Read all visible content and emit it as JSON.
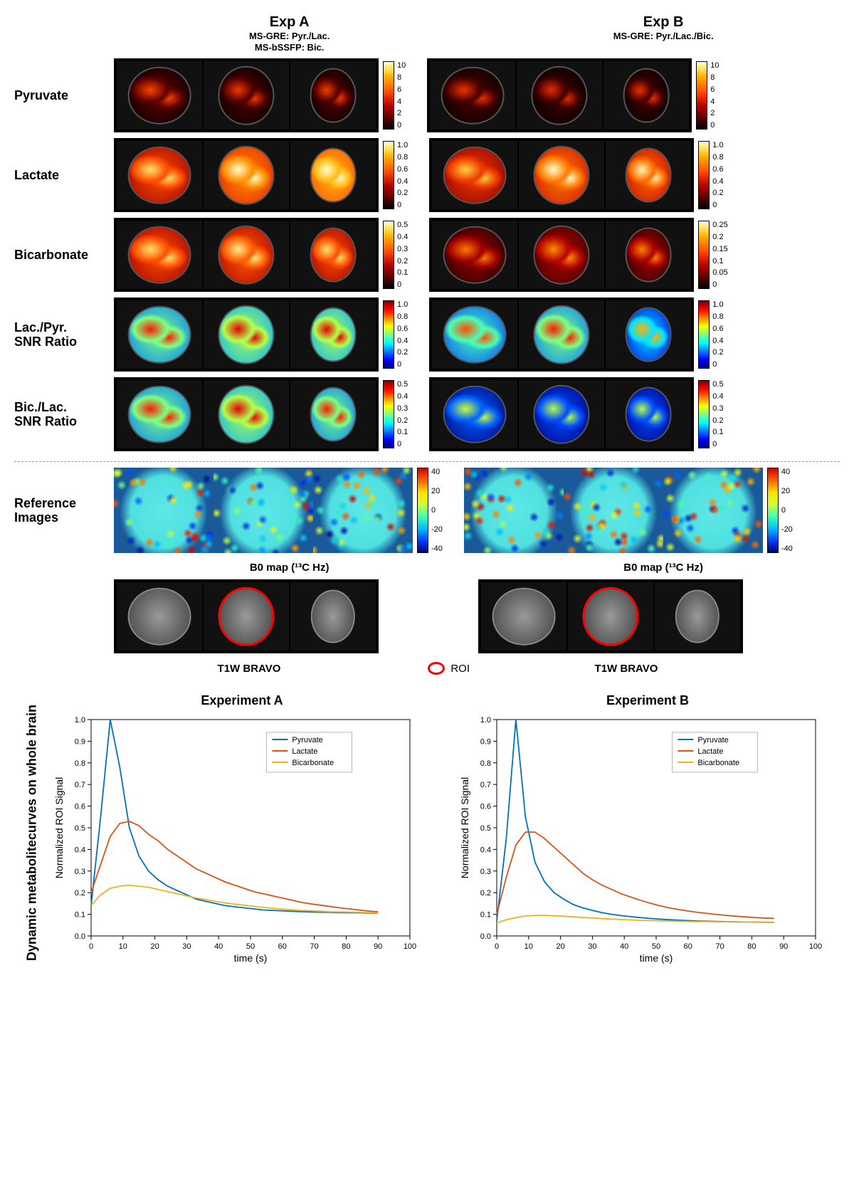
{
  "headers": {
    "expA": {
      "title": "Exp A",
      "sub1": "MS-GRE: Pyr./Lac.",
      "sub2": "MS-bSSFP: Bic."
    },
    "expB": {
      "title": "Exp B",
      "sub1": "MS-GRE: Pyr./Lac./Bic."
    }
  },
  "rows": {
    "pyruvate": {
      "label": "Pyruvate"
    },
    "lactate": {
      "label": "Lactate"
    },
    "bicarbonate": {
      "label": "Bicarbonate"
    },
    "lacpyr": {
      "label": "Lac./Pyr.\nSNR Ratio"
    },
    "biclac": {
      "label": "Bic./Lac.\nSNR Ratio"
    },
    "reference": {
      "label": "Reference\nImages"
    }
  },
  "colormaps": {
    "hot": [
      "#000000",
      "#3a0000",
      "#7a0000",
      "#b00000",
      "#e02000",
      "#ff5000",
      "#ff8000",
      "#ffb000",
      "#ffe060",
      "#ffffc8"
    ],
    "jet": [
      "#00007f",
      "#0000ff",
      "#007fff",
      "#00ffff",
      "#7fff7f",
      "#ffff00",
      "#ff7f00",
      "#ff0000",
      "#7f0000"
    ],
    "jet_ref": [
      "#000080",
      "#0040ff",
      "#00c0ff",
      "#40ffb0",
      "#d0ff30",
      "#ffe000",
      "#ff6000",
      "#d00000"
    ]
  },
  "colorbars": {
    "pyruvateA": {
      "cmap": "hot",
      "ticks": [
        "10",
        "8",
        "6",
        "4",
        "2",
        "0"
      ]
    },
    "pyruvateB": {
      "cmap": "hot",
      "ticks": [
        "10",
        "8",
        "6",
        "4",
        "2",
        "0"
      ]
    },
    "lactateA": {
      "cmap": "hot",
      "ticks": [
        "1.0",
        "0.8",
        "0.6",
        "0.4",
        "0.2",
        "0"
      ]
    },
    "lactateB": {
      "cmap": "hot",
      "ticks": [
        "1.0",
        "0.8",
        "0.6",
        "0.4",
        "0.2",
        "0"
      ]
    },
    "bicarbonateA": {
      "cmap": "hot",
      "ticks": [
        "0.5",
        "0.4",
        "0.3",
        "0.2",
        "0.1",
        "0"
      ]
    },
    "bicarbonateB": {
      "cmap": "hot",
      "ticks": [
        "0.25",
        "0.2",
        "0.15",
        "0.1",
        "0.05",
        "0"
      ]
    },
    "lacpyrA": {
      "cmap": "jet",
      "ticks": [
        "1.0",
        "0.8",
        "0.6",
        "0.4",
        "0.2",
        "0"
      ]
    },
    "lacpyrB": {
      "cmap": "jet",
      "ticks": [
        "1.0",
        "0.8",
        "0.6",
        "0.4",
        "0.2",
        "0"
      ]
    },
    "biclacA": {
      "cmap": "jet",
      "ticks": [
        "0.5",
        "0.4",
        "0.3",
        "0.2",
        "0.1",
        "0"
      ]
    },
    "biclacB": {
      "cmap": "jet",
      "ticks": [
        "0.5",
        "0.4",
        "0.3",
        "0.2",
        "0.1",
        "0"
      ]
    },
    "refA": {
      "cmap": "jet_ref",
      "ticks": [
        "40",
        "20",
        "0",
        "-20",
        "-40"
      ]
    },
    "refB": {
      "cmap": "jet_ref",
      "ticks": [
        "40",
        "20",
        "0",
        "-20",
        "-40"
      ]
    }
  },
  "captions": {
    "b0map": "B0 map (¹³C Hz)",
    "t1w": "T1W BRAVO",
    "roi": "ROI"
  },
  "slice_fill_levels": {
    "pyruvateA": [
      0.18,
      0.15,
      0.16
    ],
    "pyruvateB": [
      0.14,
      0.12,
      0.13
    ],
    "lactateA": [
      0.55,
      0.7,
      0.8
    ],
    "lactateB": [
      0.5,
      0.65,
      0.62
    ],
    "bicarbonateA": [
      0.55,
      0.58,
      0.55
    ],
    "bicarbonateB": [
      0.3,
      0.35,
      0.32
    ],
    "lacpyrA": [
      0.5,
      0.55,
      0.55
    ],
    "lacpyrB": [
      0.45,
      0.5,
      0.35
    ],
    "biclacA": [
      0.5,
      0.55,
      0.5
    ],
    "biclacB": [
      0.22,
      0.2,
      0.2
    ]
  },
  "charts": {
    "sectionLabel": "Dynamic metabolite\ncurves on whole brain",
    "xlabel": "time (s)",
    "ylabel": "Normalized ROI Signal",
    "xlim": [
      0,
      100
    ],
    "xtick_step": 10,
    "ylim": [
      0,
      1
    ],
    "ytick_step": 0.1,
    "legend": [
      "Pyruvate",
      "Lactate",
      "Bicarbonate"
    ],
    "colors": {
      "Pyruvate": "#0072bd",
      "Lactate": "#d95319",
      "Bicarbonate": "#edb120"
    },
    "line_width": 1.8,
    "A": {
      "title": "Experiment A",
      "x": [
        0,
        3,
        6,
        9,
        12,
        15,
        18,
        21,
        24,
        27,
        30,
        33,
        36,
        39,
        42,
        45,
        48,
        51,
        54,
        57,
        60,
        63,
        66,
        69,
        72,
        75,
        78,
        81,
        84,
        87,
        90
      ],
      "Pyruvate": [
        0.14,
        0.55,
        1.0,
        0.78,
        0.5,
        0.37,
        0.3,
        0.26,
        0.23,
        0.21,
        0.19,
        0.17,
        0.16,
        0.15,
        0.14,
        0.135,
        0.13,
        0.125,
        0.12,
        0.118,
        0.116,
        0.114,
        0.112,
        0.111,
        0.11,
        0.109,
        0.108,
        0.107,
        0.107,
        0.106,
        0.106
      ],
      "Lactate": [
        0.2,
        0.33,
        0.46,
        0.52,
        0.53,
        0.51,
        0.47,
        0.44,
        0.4,
        0.37,
        0.34,
        0.31,
        0.29,
        0.27,
        0.25,
        0.235,
        0.22,
        0.205,
        0.195,
        0.185,
        0.175,
        0.165,
        0.155,
        0.148,
        0.142,
        0.136,
        0.13,
        0.125,
        0.12,
        0.115,
        0.112
      ],
      "Bicarbonate": [
        0.14,
        0.19,
        0.22,
        0.23,
        0.235,
        0.23,
        0.225,
        0.215,
        0.205,
        0.195,
        0.185,
        0.175,
        0.168,
        0.16,
        0.153,
        0.147,
        0.142,
        0.137,
        0.132,
        0.128,
        0.124,
        0.121,
        0.118,
        0.116,
        0.114,
        0.112,
        0.111,
        0.11,
        0.109,
        0.108,
        0.107
      ]
    },
    "B": {
      "title": "Experiment B",
      "x": [
        0,
        3,
        6,
        9,
        12,
        15,
        18,
        21,
        24,
        27,
        30,
        33,
        36,
        39,
        42,
        45,
        48,
        51,
        54,
        57,
        60,
        63,
        66,
        69,
        72,
        75,
        78,
        81,
        84,
        87
      ],
      "Pyruvate": [
        0.07,
        0.45,
        1.0,
        0.55,
        0.34,
        0.25,
        0.2,
        0.17,
        0.145,
        0.13,
        0.118,
        0.108,
        0.1,
        0.094,
        0.089,
        0.085,
        0.081,
        0.078,
        0.075,
        0.073,
        0.071,
        0.069,
        0.068,
        0.067,
        0.066,
        0.065,
        0.064,
        0.064,
        0.063,
        0.063
      ],
      "Lactate": [
        0.1,
        0.27,
        0.42,
        0.48,
        0.48,
        0.45,
        0.41,
        0.37,
        0.33,
        0.29,
        0.26,
        0.235,
        0.215,
        0.195,
        0.18,
        0.165,
        0.152,
        0.14,
        0.13,
        0.122,
        0.115,
        0.109,
        0.104,
        0.099,
        0.095,
        0.091,
        0.088,
        0.085,
        0.083,
        0.081
      ],
      "Bicarbonate": [
        0.06,
        0.075,
        0.085,
        0.092,
        0.095,
        0.095,
        0.093,
        0.091,
        0.088,
        0.085,
        0.083,
        0.08,
        0.078,
        0.076,
        0.074,
        0.072,
        0.071,
        0.07,
        0.069,
        0.068,
        0.067,
        0.066,
        0.066,
        0.065,
        0.065,
        0.064,
        0.064,
        0.063,
        0.063,
        0.063
      ]
    }
  },
  "styling": {
    "background_color": "#ffffff",
    "row_label_fontsize": 18,
    "header_title_fontsize": 20,
    "header_sub_fontsize": 13,
    "cbar_tick_fontsize": 11,
    "chart_title_fontsize": 18,
    "axis_label_fontsize": 14,
    "tick_fontsize": 11,
    "roi_color": "#ff0000"
  }
}
